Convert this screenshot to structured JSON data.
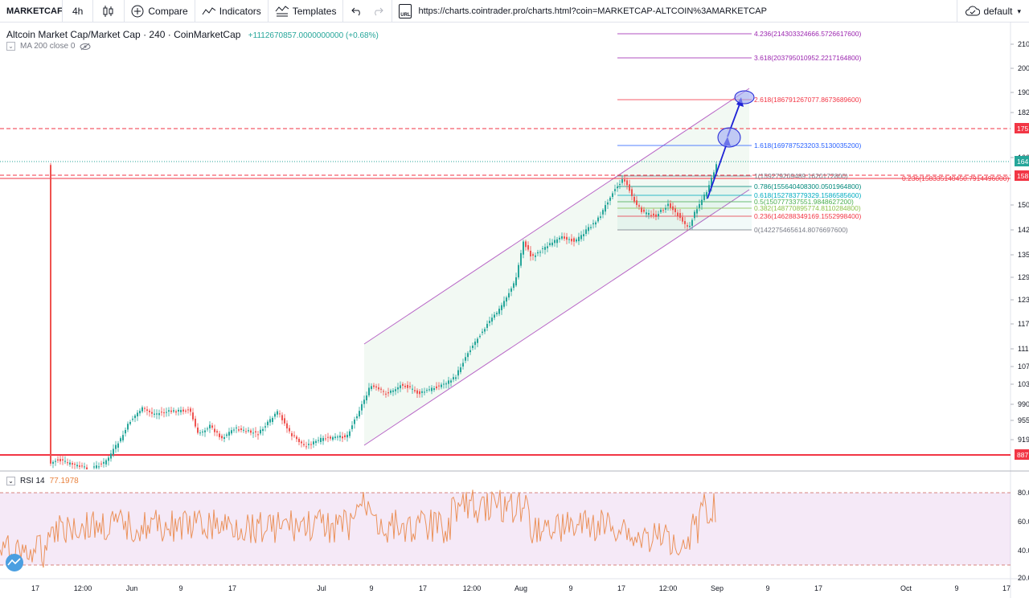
{
  "toolbar": {
    "symbol": "MARKETCAF",
    "interval": "4h",
    "compare": "Compare",
    "indicators": "Indicators",
    "templates": "Templates",
    "url": "https://charts.cointrader.pro/charts.html?coin=MARKETCAP-ALTCOIN%3AMARKETCAP",
    "theme": "default",
    "url_badge": "URL"
  },
  "legend": {
    "title": "Altcoin Market Cap/Market Cap · 240 · CoinMarketCap",
    "change": "+1112670857.0000000000 (+0.68%)",
    "ma": "MA 200 close 0",
    "rsi_label": "RSI 14",
    "rsi_value": "77.1978"
  },
  "price_axis": {
    "ticks": [
      "210",
      "200",
      "190",
      "182",
      "174",
      "166",
      "158",
      "150",
      "142",
      "135",
      "129",
      "123",
      "117",
      "111",
      "107",
      "103",
      "990",
      "955",
      "919",
      "887"
    ],
    "visible_tick_labels": [
      "210",
      "200",
      "190",
      "182",
      "166",
      "150",
      "142",
      "135",
      "129",
      "123",
      "117",
      "111",
      "107",
      "103",
      "990",
      "955",
      "919"
    ],
    "badges": [
      {
        "label": "175",
        "color": "#f23645"
      },
      {
        "label": "164",
        "color": "#26a69a"
      },
      {
        "label": "158",
        "color": "#f23645"
      },
      {
        "label": "887",
        "color": "#f23645"
      }
    ]
  },
  "rsi_axis": {
    "ticks": [
      "80.0",
      "60.0",
      "40.0",
      "20.0"
    ]
  },
  "time_axis": {
    "labels": [
      "17",
      "12:00",
      "Jun",
      "9",
      "17",
      "Jul",
      "9",
      "17",
      "12:00",
      "Aug",
      "9",
      "17",
      "12:00",
      "Sep",
      "9",
      "17",
      "Oct",
      "9",
      "17"
    ]
  },
  "fib_levels": [
    {
      "label": "4.236(214303324666.5726617600)",
      "color": "#9c27b0"
    },
    {
      "label": "3.618(203795010952.2217164800)",
      "color": "#9c27b0"
    },
    {
      "label": "2.618(186791267077.8673689600)",
      "color": "#f23645"
    },
    {
      "label": "1.618(169787523203.5130035200)",
      "color": "#2962ff"
    },
    {
      "label": "1(159279209489.1620172800)",
      "color": "#787b86"
    },
    {
      "label": "0.786(155640408300.0501964800)",
      "color": "#00897b"
    },
    {
      "label": "0.618(152783779329.1586585600)",
      "color": "#00acc1"
    },
    {
      "label": "0.5(150777337551.9848627200)",
      "color": "#4caf50"
    },
    {
      "label": "0.382(148770895774.8110284800)",
      "color": "#8bc34a"
    },
    {
      "label": "0.236(146288349169.1552998400)",
      "color": "#f23645"
    },
    {
      "label": "0(142275465614.8076697600)",
      "color": "#787b86"
    }
  ],
  "extra_label": {
    "label": "0.236(158335140450.7914496000)",
    "color": "#f23645"
  },
  "chart_data": {
    "type": "line",
    "title": "Altcoin Market Cap/Market Cap · 240 · CoinMarketCap",
    "price_range_label": [
      "887",
      "210"
    ],
    "series": [
      {
        "name": "RSI 14",
        "values_label": "77.1978"
      }
    ]
  },
  "colors": {
    "up": "#26a69a",
    "down": "#ef5350",
    "channel": "#9c27b0",
    "rsi": "#e9833f",
    "arrow": "#1e22d6",
    "hline": "#f23645"
  }
}
